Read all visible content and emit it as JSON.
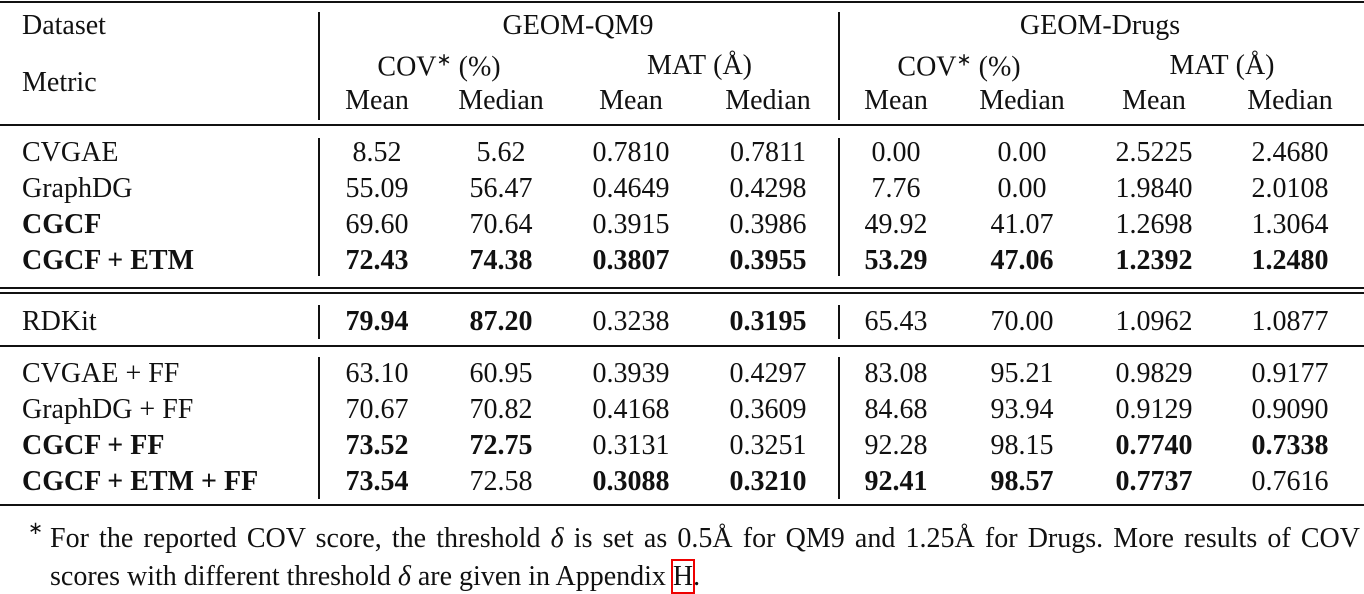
{
  "header": {
    "dataset_label": "Dataset",
    "metric_label": "Metric",
    "groups": [
      "GEOM-QM9",
      "GEOM-Drugs"
    ],
    "metrics": [
      {
        "name": "COV",
        "mark": "∗",
        "unit": "(%)"
      },
      {
        "name": "MAT",
        "unit": "(Å)"
      }
    ],
    "stats": [
      "Mean",
      "Median"
    ]
  },
  "table": {
    "sections": [
      {
        "rows": [
          [
            "CVGAE",
            "8.52",
            "5.62",
            "0.7810",
            "0.7811",
            "0.00",
            "0.00",
            "2.5225",
            "2.4680"
          ],
          [
            "GraphDG",
            "55.09",
            "56.47",
            "0.4649",
            "0.4298",
            "7.76",
            "0.00",
            "1.9840",
            "2.0108"
          ],
          [
            "CGCF",
            "69.60",
            "70.64",
            "0.3915",
            "0.3986",
            "49.92",
            "41.07",
            "1.2698",
            "1.3064"
          ],
          [
            "CGCF + ETM",
            "72.43",
            "74.38",
            "0.3807",
            "0.3955",
            "53.29",
            "47.06",
            "1.2392",
            "1.2480"
          ]
        ]
      },
      {
        "rows": [
          [
            "RDKit",
            "79.94",
            "87.20",
            "0.3238",
            "0.3195",
            "65.43",
            "70.00",
            "1.0962",
            "1.0877"
          ]
        ]
      },
      {
        "rows": [
          [
            "CVGAE + FF",
            "63.10",
            "60.95",
            "0.3939",
            "0.4297",
            "83.08",
            "95.21",
            "0.9829",
            "0.9177"
          ],
          [
            "GraphDG + FF",
            "70.67",
            "70.82",
            "0.4168",
            "0.3609",
            "84.68",
            "93.94",
            "0.9129",
            "0.9090"
          ],
          [
            "CGCF + FF",
            "73.52",
            "72.75",
            "0.3131",
            "0.3251",
            "92.28",
            "98.15",
            "0.7740",
            "0.7338"
          ],
          [
            "CGCF + ETM + FF",
            "73.54",
            "72.58",
            "0.3088",
            "0.3210",
            "92.41",
            "98.57",
            "0.7737",
            "0.7616"
          ]
        ]
      }
    ]
  },
  "footnote": {
    "mark": "∗",
    "parts": [
      "For the reported COV score, the threshold ",
      "δ",
      " is set as ",
      "0.5Å",
      " for QM9 and ",
      "1.25Å",
      " for Drugs. More results of COV scores with different threshold ",
      "δ",
      " are given in Appendix ",
      "H",
      "."
    ]
  }
}
